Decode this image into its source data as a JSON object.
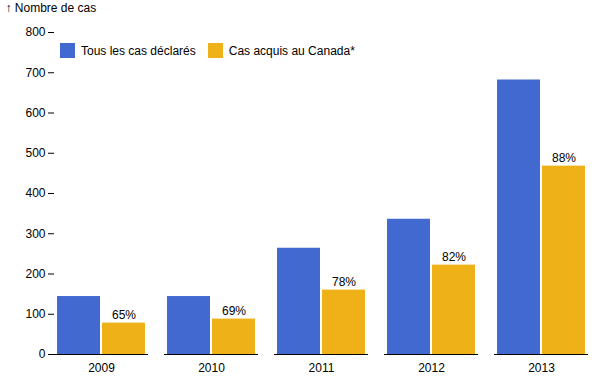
{
  "chart_data": {
    "type": "bar",
    "categories": [
      "2009",
      "2010",
      "2011",
      "2012",
      "2013"
    ],
    "series": [
      {
        "name": "Tous les cas déclarés",
        "values": [
          144,
          144,
          264,
          336,
          682
        ]
      },
      {
        "name": "Cas acquis au Canada*",
        "values": [
          78,
          88,
          160,
          222,
          468
        ],
        "annotations": [
          "65%",
          "69%",
          "78%",
          "82%",
          "88%"
        ]
      }
    ],
    "ylabel": "Nombre de cas",
    "ylim": [
      0,
      800
    ],
    "yticks": [
      0,
      100,
      200,
      300,
      400,
      500,
      600,
      700,
      800
    ],
    "grid": false,
    "legend": "upper left"
  }
}
